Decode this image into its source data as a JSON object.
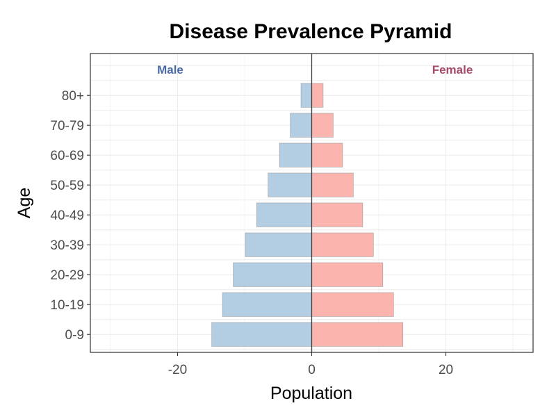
{
  "chart_data": {
    "type": "bar",
    "orientation": "horizontal",
    "title": "Disease Prevalence Pyramid",
    "xlabel": "Population",
    "ylabel": "Age",
    "categories": [
      "0-9",
      "10-19",
      "20-29",
      "30-39",
      "40-49",
      "50-59",
      "60-69",
      "70-79",
      "80+"
    ],
    "series": [
      {
        "name": "Male",
        "values": [
          -14.9,
          -13.3,
          -11.7,
          -9.9,
          -8.2,
          -6.5,
          -4.8,
          -3.2,
          -1.6
        ],
        "color": "#b3cde3",
        "label_color": "#4a6ba8"
      },
      {
        "name": "Female",
        "values": [
          13.6,
          12.2,
          10.6,
          9.2,
          7.6,
          6.2,
          4.6,
          3.2,
          1.7
        ],
        "color": "#fbb4ae",
        "label_color": "#a84a6b"
      }
    ],
    "xlim": [
      -33,
      33
    ],
    "xticks": [
      -20,
      0,
      20
    ],
    "xtick_labels": [
      "-20",
      "0",
      "20"
    ],
    "grid": true,
    "zero_line": true,
    "legend": "top-left / top-right inside panel"
  }
}
